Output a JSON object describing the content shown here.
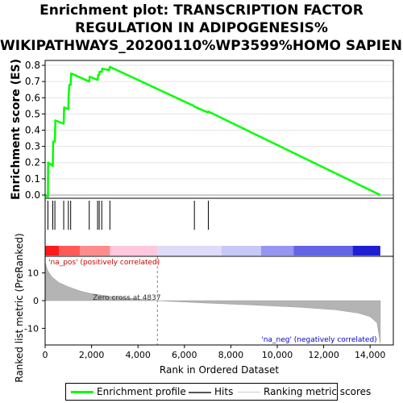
{
  "title_lines": [
    "Enrichment plot: TRANSCRIPTION FACTOR",
    "REGULATION IN ADIPOGENESIS%",
    "WIKIPATHWAYS_20200110%WP3599%HOMO SAPIENS"
  ],
  "colors": {
    "profile": "#00ff00",
    "hits": "#000000",
    "metric_fill": "#b4b4b4",
    "zero_cross": "#808080",
    "pos_label": "#cc0000",
    "neg_label": "#0000cc"
  },
  "chart_data": [
    {
      "type": "line",
      "name": "enrichment-profile",
      "ylabel": "Enrichment score (ES)",
      "ylim": [
        -0.02,
        0.83
      ],
      "yticks": [
        "0.0",
        "0.1",
        "0.2",
        "0.3",
        "0.4",
        "0.5",
        "0.6",
        "0.7",
        "0.8"
      ],
      "ytick_values": [
        0,
        0.1,
        0.2,
        0.3,
        0.4,
        0.5,
        0.6,
        0.7,
        0.8
      ],
      "xlim": [
        0,
        15000
      ],
      "grid": true,
      "points": [
        [
          0,
          0.0
        ],
        [
          120,
          -0.01
        ],
        [
          130,
          0.2
        ],
        [
          330,
          0.18
        ],
        [
          345,
          0.33
        ],
        [
          420,
          0.33
        ],
        [
          440,
          0.46
        ],
        [
          800,
          0.44
        ],
        [
          820,
          0.54
        ],
        [
          1000,
          0.53
        ],
        [
          1010,
          0.61
        ],
        [
          1040,
          0.68
        ],
        [
          1100,
          0.68
        ],
        [
          1120,
          0.75
        ],
        [
          1900,
          0.7
        ],
        [
          1920,
          0.73
        ],
        [
          2260,
          0.71
        ],
        [
          2280,
          0.74
        ],
        [
          2330,
          0.74
        ],
        [
          2345,
          0.76
        ],
        [
          2440,
          0.76
        ],
        [
          2460,
          0.78
        ],
        [
          2750,
          0.77
        ],
        [
          2790,
          0.79
        ],
        [
          6400,
          0.55
        ],
        [
          6430,
          0.545
        ],
        [
          7000,
          0.51
        ],
        [
          7030,
          0.515
        ],
        [
          14440,
          0.0
        ]
      ]
    },
    {
      "type": "hits",
      "name": "hits",
      "xlim": [
        0,
        15000
      ],
      "positions": [
        120,
        330,
        420,
        800,
        1000,
        1100,
        1900,
        2260,
        2330,
        2440,
        2790,
        6430,
        7030
      ]
    },
    {
      "type": "area",
      "name": "ranked-list-metric",
      "ylabel": "Ranked list metric (PreRanked)",
      "xlabel": "Rank in Ordered Dataset",
      "xlim": [
        0,
        15000
      ],
      "ylim": [
        -16,
        16
      ],
      "xticks": [
        "0",
        "2,000",
        "4,000",
        "6,000",
        "8,000",
        "10,000",
        "12,000",
        "14,000"
      ],
      "xtick_values": [
        0,
        2000,
        4000,
        6000,
        8000,
        10000,
        12000,
        14000
      ],
      "yticks": [
        "10",
        "0",
        "-10"
      ],
      "ytick_values": [
        10,
        0,
        -10
      ],
      "points": [
        [
          0,
          14
        ],
        [
          100,
          11
        ],
        [
          300,
          8.5
        ],
        [
          600,
          6.5
        ],
        [
          1000,
          5
        ],
        [
          1500,
          3.5
        ],
        [
          2000,
          2.5
        ],
        [
          2800,
          1.5
        ],
        [
          3600,
          0.9
        ],
        [
          4300,
          0.4
        ],
        [
          4837,
          0
        ],
        [
          5500,
          -0.3
        ],
        [
          7000,
          -0.9
        ],
        [
          9000,
          -1.6
        ],
        [
          11000,
          -2.4
        ],
        [
          12500,
          -3.3
        ],
        [
          13500,
          -4.5
        ],
        [
          14000,
          -5.8
        ],
        [
          14300,
          -8
        ],
        [
          14440,
          -15.5
        ]
      ],
      "zero_cross": 4837,
      "zero_cross_label": "Zero cross at 4837",
      "pos_label": "'na_pos' (positively correlated)",
      "neg_label": "'na_neg' (negatively correlated)"
    },
    {
      "type": "heatmap",
      "name": "ranking-color-bar",
      "segments": [
        {
          "from": 0,
          "to": 600,
          "color": "#ff1a1a"
        },
        {
          "from": 600,
          "to": 1500,
          "color": "#ff5a5a"
        },
        {
          "from": 1500,
          "to": 2800,
          "color": "#ff8c8c"
        },
        {
          "from": 2800,
          "to": 4837,
          "color": "#ffc8dc"
        },
        {
          "from": 4837,
          "to": 7600,
          "color": "#dcdcf8"
        },
        {
          "from": 7600,
          "to": 9300,
          "color": "#c8c8f8"
        },
        {
          "from": 9300,
          "to": 10700,
          "color": "#9696f0"
        },
        {
          "from": 10700,
          "to": 13250,
          "color": "#6464e6"
        },
        {
          "from": 13250,
          "to": 14440,
          "color": "#1e1ed2"
        }
      ]
    }
  ],
  "legend": {
    "profile_label": "Enrichment profile",
    "hits_label": "Hits",
    "scores_label": "Ranking metric scores"
  }
}
